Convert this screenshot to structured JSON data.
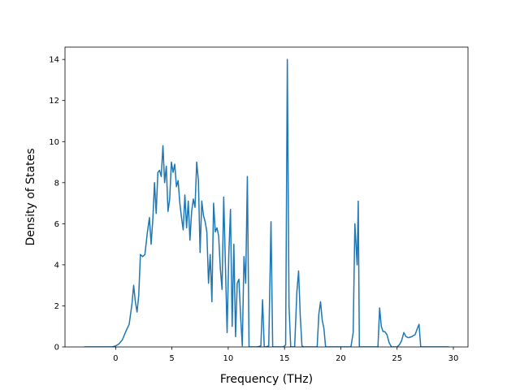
{
  "chart_data": {
    "type": "line",
    "title": "",
    "xlabel": "Frequency (THz)",
    "ylabel": "Density of States",
    "xlim": [
      -4.5,
      31.3
    ],
    "ylim": [
      0,
      14.6
    ],
    "x_ticks": [
      0,
      5,
      10,
      15,
      20,
      25,
      30
    ],
    "y_ticks": [
      0,
      2,
      4,
      6,
      8,
      10,
      12,
      14
    ],
    "grid": false,
    "legend": "none",
    "line_color": "#1f77b4",
    "series": [
      {
        "x": [
          -2.8,
          -0.3,
          0.0,
          0.3,
          0.6,
          0.9,
          1.2,
          1.45,
          1.6,
          1.75,
          1.9,
          2.05,
          2.2,
          2.4,
          2.6,
          2.8,
          3.0,
          3.15,
          3.3,
          3.45,
          3.6,
          3.75,
          3.9,
          4.05,
          4.2,
          4.35,
          4.5,
          4.65,
          4.8,
          4.95,
          5.1,
          5.25,
          5.4,
          5.55,
          5.7,
          5.85,
          6.0,
          6.15,
          6.3,
          6.45,
          6.6,
          6.75,
          6.9,
          7.05,
          7.2,
          7.35,
          7.5,
          7.65,
          7.8,
          7.95,
          8.1,
          8.25,
          8.4,
          8.55,
          8.7,
          8.85,
          9.0,
          9.15,
          9.3,
          9.45,
          9.6,
          9.75,
          9.9,
          10.05,
          10.2,
          10.35,
          10.5,
          10.65,
          10.8,
          10.95,
          11.1,
          11.25,
          11.4,
          11.55,
          11.7,
          11.85,
          12.0,
          12.15,
          12.3,
          12.6,
          12.9,
          13.05,
          13.2,
          13.35,
          13.6,
          13.8,
          13.95,
          14.1,
          14.25,
          14.4,
          14.6,
          14.9,
          15.1,
          15.25,
          15.4,
          15.55,
          15.7,
          15.9,
          16.1,
          16.25,
          16.4,
          16.55,
          16.7,
          17.0,
          17.5,
          17.9,
          18.05,
          18.2,
          18.35,
          18.5,
          18.65,
          18.8,
          18.95,
          19.1,
          19.5,
          20.0,
          20.5,
          20.9,
          21.1,
          21.25,
          21.35,
          21.45,
          21.55,
          21.65,
          21.75,
          21.9,
          22.2,
          22.6,
          23.0,
          23.3,
          23.45,
          23.6,
          23.75,
          23.9,
          24.1,
          24.3,
          24.5,
          24.7,
          25.0,
          25.2,
          25.4,
          25.6,
          25.8,
          26.0,
          26.3,
          26.6,
          26.8,
          26.95,
          27.1,
          27.25,
          27.6,
          28.2,
          28.8,
          29.6
        ],
        "y": [
          0,
          0,
          0.05,
          0.15,
          0.35,
          0.75,
          1.1,
          2.1,
          3.0,
          2.2,
          1.7,
          2.5,
          4.5,
          4.4,
          4.5,
          5.5,
          6.3,
          5.0,
          6.2,
          8.0,
          6.5,
          8.5,
          8.6,
          8.3,
          9.8,
          8.0,
          8.8,
          6.6,
          7.2,
          9.0,
          8.5,
          8.9,
          7.8,
          8.1,
          7.0,
          6.3,
          5.7,
          7.4,
          5.8,
          7.1,
          5.2,
          6.6,
          7.2,
          6.8,
          9.0,
          8.1,
          4.6,
          7.1,
          6.4,
          6.1,
          5.6,
          3.1,
          4.5,
          2.2,
          7.0,
          5.6,
          5.8,
          5.4,
          3.8,
          2.8,
          7.3,
          4.0,
          0.7,
          4.5,
          6.7,
          1.0,
          5.0,
          0.5,
          3.1,
          3.3,
          1.5,
          0.05,
          4.4,
          3.1,
          8.3,
          0.0,
          0.0,
          0.0,
          0.0,
          0.0,
          0.05,
          2.3,
          0.0,
          0.0,
          0.05,
          6.1,
          0.0,
          0.0,
          0.0,
          0.0,
          0.0,
          0.0,
          0.1,
          14.0,
          2.0,
          0.0,
          0.0,
          0.0,
          2.7,
          3.7,
          1.5,
          0.05,
          0.0,
          0.0,
          0.0,
          0.0,
          1.6,
          2.2,
          1.3,
          0.9,
          0.0,
          0.0,
          0.0,
          0.0,
          0.0,
          0.0,
          0.0,
          0.0,
          0.7,
          6.0,
          5.0,
          4.0,
          7.1,
          0.0,
          0.0,
          0.0,
          0.0,
          0.0,
          0.0,
          0.0,
          1.9,
          1.0,
          0.75,
          0.75,
          0.6,
          0.2,
          0.0,
          0.0,
          0.0,
          0.1,
          0.3,
          0.7,
          0.5,
          0.45,
          0.5,
          0.6,
          0.9,
          1.1,
          0.0,
          0.0,
          0.0,
          0.0,
          0.0,
          0.0
        ]
      }
    ]
  }
}
